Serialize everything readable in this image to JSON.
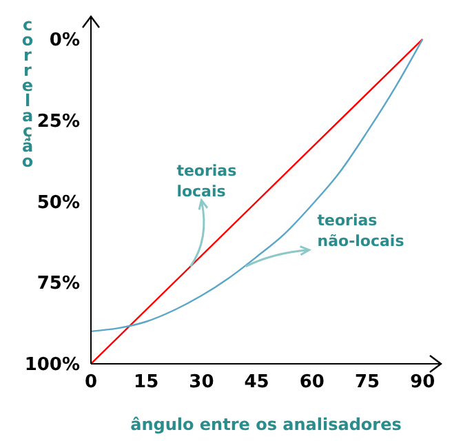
{
  "chart_data": {
    "type": "line",
    "xlabel": "ângulo entre os analisadores",
    "ylabel": "correlação",
    "xlim": [
      0,
      95
    ],
    "ylim": [
      100,
      -7
    ],
    "xticks": [
      0,
      15,
      30,
      45,
      60,
      75,
      90
    ],
    "yticks": [
      {
        "value": 0,
        "label": "0%"
      },
      {
        "value": 25,
        "label": "25%"
      },
      {
        "value": 50,
        "label": "50%"
      },
      {
        "value": 75,
        "label": "75%"
      },
      {
        "value": 100,
        "label": "100%"
      }
    ],
    "marker": "none",
    "line_style": "solid",
    "series": [
      {
        "color": "#ff0000",
        "x": [
          0,
          90
        ],
        "values": [
          100,
          0
        ]
      },
      {
        "color": "#5aa6c8",
        "x": [
          0,
          7.5,
          15,
          22.5,
          30,
          37.5,
          45,
          52.5,
          60,
          67.5,
          75,
          82.5,
          90
        ],
        "values": [
          90,
          89,
          87,
          83.5,
          79,
          73.5,
          67,
          60,
          51,
          41,
          28.5,
          15,
          0
        ]
      }
    ],
    "annotations": [
      {
        "text": "teorias\nlocais",
        "x": 27,
        "y": 70
      },
      {
        "text": "teorias\nnão-locais",
        "x": 42,
        "y": 70
      }
    ]
  }
}
